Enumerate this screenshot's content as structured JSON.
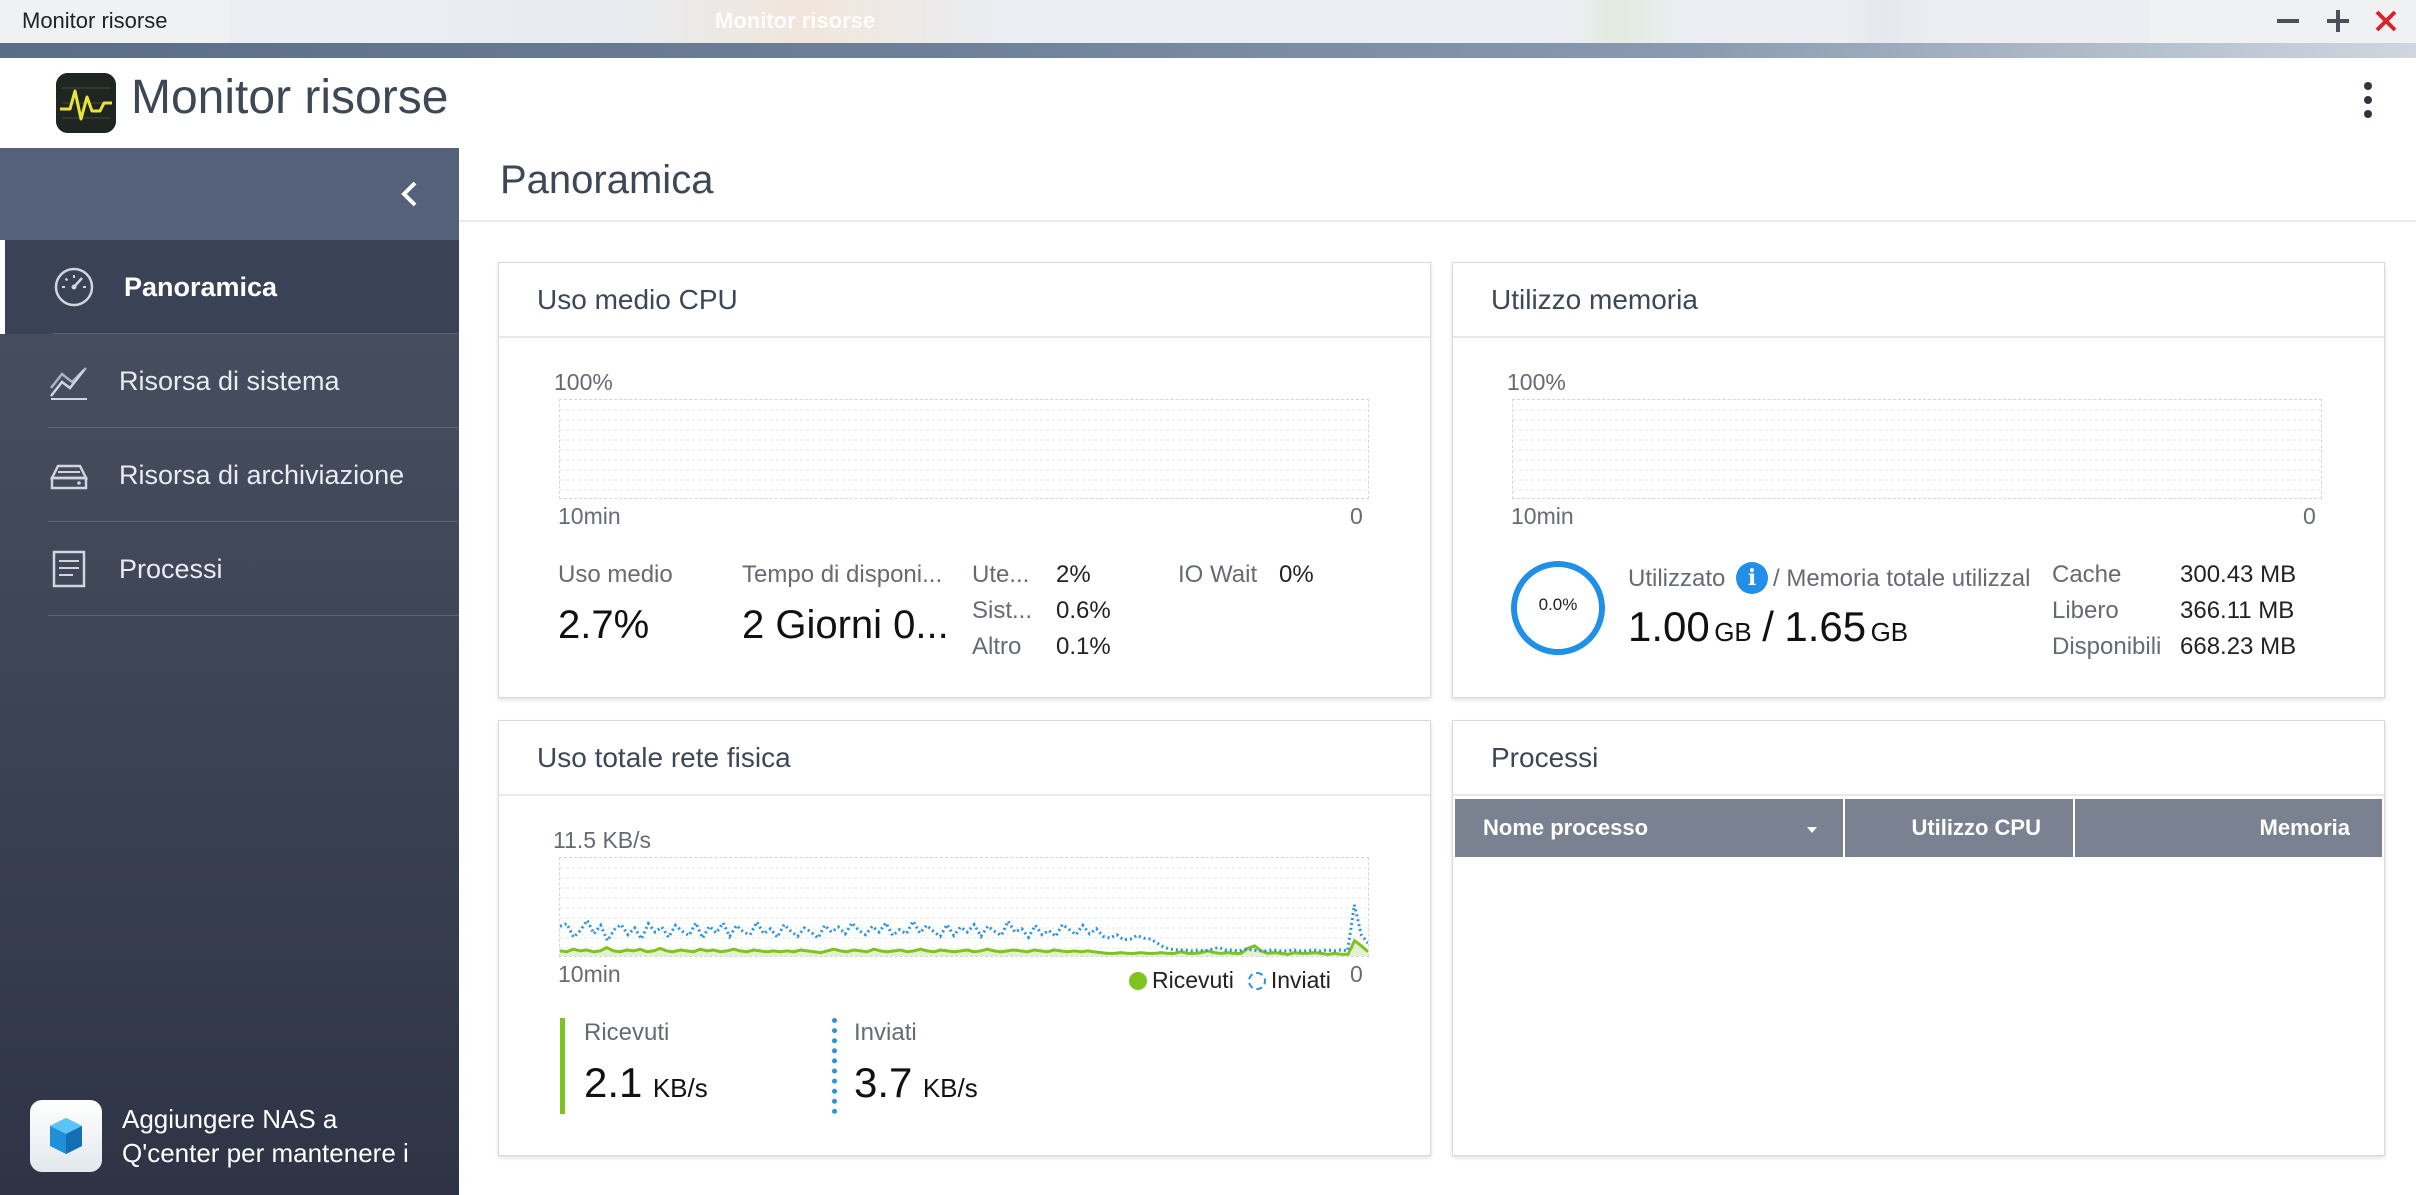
{
  "window": {
    "title": "Monitor risorse",
    "ghost_title": "Monitor risorse"
  },
  "app": {
    "name": "Monitor risorse"
  },
  "sidebar": {
    "items": [
      {
        "label": "Panoramica",
        "icon": "gauge-icon",
        "active": true
      },
      {
        "label": "Risorsa di sistema",
        "icon": "line-chart-icon",
        "active": false
      },
      {
        "label": "Risorsa di archiviazione",
        "icon": "storage-icon",
        "active": false
      },
      {
        "label": "Processi",
        "icon": "document-list-icon",
        "active": false
      }
    ],
    "qcenter_text_line1": "Aggiungere NAS a",
    "qcenter_text_line2": "Q'center per mantenere i"
  },
  "main": {
    "title": "Panoramica"
  },
  "cpu": {
    "title": "Uso medio CPU",
    "y_max_label": "100%",
    "x_start_label": "10min",
    "x_end_label": "0",
    "avg_label": "Uso medio",
    "avg_value": "2.7%",
    "uptime_label": "Tempo di disponi...",
    "uptime_value": "2 Giorni 0...",
    "user_label": "Ute...",
    "user_value": "2%",
    "sys_label": "Sist...",
    "sys_value": "0.6%",
    "other_label": "Altro",
    "other_value": "0.1%",
    "iowait_label": "IO Wait",
    "iowait_value": "0%"
  },
  "memory": {
    "title": "Utilizzo memoria",
    "y_max_label": "100%",
    "x_start_label": "10min",
    "x_end_label": "0",
    "gauge_value": "0.0%",
    "used_label": "Utilizzato",
    "total_label": "/ Memoria totale utilizzal",
    "used_value": "1.00",
    "used_unit": "GB",
    "separator": "/",
    "total_value": "1.65",
    "total_unit": "GB",
    "cache_label": "Cache",
    "cache_value": "300.43 MB",
    "free_label": "Libero",
    "free_value": "366.11 MB",
    "avail_label": "Disponibili",
    "avail_value": "668.23 MB"
  },
  "network": {
    "title": "Uso totale rete fisica",
    "y_max_label": "11.5 KB/s",
    "x_start_label": "10min",
    "x_end_label": "0",
    "legend_received": "Ricevuti",
    "legend_sent": "Inviati",
    "received_label": "Ricevuti",
    "received_value": "2.1",
    "received_unit": "KB/s",
    "sent_label": "Inviati",
    "sent_value": "3.7",
    "sent_unit": "KB/s",
    "colors": {
      "received": "#7ec320",
      "sent": "#2a93e0"
    }
  },
  "processes": {
    "title": "Processi",
    "columns": [
      "Nome processo",
      "Utilizzo CPU",
      "Memoria"
    ]
  },
  "chart_data": {
    "type": "line",
    "title": "Uso totale rete fisica",
    "xlabel": "",
    "ylabel": "",
    "ylim": [
      0,
      11.5
    ],
    "x_labels": [
      "10min",
      "0"
    ],
    "series": [
      {
        "name": "Ricevuti",
        "style": "solid-area",
        "color": "#7ec320",
        "values": [
          0.6,
          0.5,
          0.8,
          0.6,
          0.7,
          0.5,
          0.6,
          1.0,
          0.6,
          0.5,
          0.7,
          0.6,
          0.8,
          0.5,
          0.6,
          0.9,
          0.6,
          0.5,
          0.7,
          0.6,
          0.5,
          0.8,
          0.6,
          0.7,
          0.5,
          0.6,
          0.8,
          0.6,
          0.5,
          0.7,
          0.6,
          0.5,
          0.6,
          0.5,
          0.6,
          0.5,
          0.7,
          0.6,
          0.5,
          0.4,
          0.6,
          0.8,
          0.6,
          0.5,
          0.7,
          0.6,
          0.5,
          0.8,
          0.6,
          0.5,
          0.6,
          0.7,
          0.5,
          0.6,
          0.8,
          0.6,
          0.5,
          0.7,
          0.6,
          0.5,
          0.6,
          0.7,
          0.5,
          0.6,
          0.8,
          0.6,
          0.5,
          0.6,
          0.7,
          0.6,
          0.5,
          0.7,
          0.6,
          0.5,
          0.7,
          0.6,
          0.5,
          0.6,
          0.5,
          0.6,
          0.5,
          0.4,
          0.3,
          0.3,
          0.4,
          0.3,
          0.3,
          0.4,
          0.3,
          0.3,
          0.4,
          0.3,
          0.3,
          0.5,
          0.3,
          0.3,
          0.4,
          0.6,
          0.4,
          0.3,
          0.4,
          0.3,
          0.3,
          0.9,
          1.2,
          0.6,
          0.3,
          0.4,
          0.3,
          0.2,
          0.4,
          0.3,
          0.3,
          0.4,
          0.3,
          0.2,
          0.3,
          0.2,
          0.2,
          1.8,
          1.2,
          0.5
        ]
      },
      {
        "name": "Inviati",
        "style": "dotted",
        "color": "#2a93e0",
        "values": [
          3.5,
          3.8,
          2.2,
          3.0,
          4.2,
          2.6,
          3.6,
          1.8,
          3.1,
          3.7,
          2.5,
          3.3,
          2.0,
          3.8,
          2.8,
          3.4,
          2.2,
          3.6,
          2.9,
          2.4,
          3.9,
          2.1,
          3.5,
          2.7,
          3.9,
          2.3,
          3.6,
          2.8,
          2.5,
          4.0,
          2.6,
          3.2,
          2.2,
          3.7,
          2.9,
          2.3,
          3.3,
          2.8,
          2.1,
          3.6,
          2.8,
          3.4,
          2.6,
          3.9,
          3.0,
          2.5,
          3.5,
          2.8,
          3.9,
          2.4,
          3.1,
          2.6,
          4.1,
          2.7,
          3.6,
          2.9,
          2.3,
          3.7,
          2.4,
          3.4,
          2.8,
          3.7,
          2.3,
          3.5,
          2.9,
          2.4,
          4.1,
          2.8,
          3.2,
          2.2,
          3.6,
          2.5,
          3.0,
          2.3,
          3.7,
          3.1,
          2.5,
          3.6,
          2.6,
          3.2,
          2.3,
          2.1,
          2.5,
          1.9,
          2.0,
          2.4,
          2.1,
          2.0,
          1.5,
          1.0,
          0.8,
          0.7,
          0.7,
          0.6,
          0.7,
          0.6,
          0.8,
          1.0,
          0.7,
          0.7,
          0.6,
          0.8,
          0.7,
          0.6,
          0.6,
          0.7,
          0.6,
          0.6,
          0.7,
          0.6,
          0.6,
          0.7,
          0.6,
          0.7,
          0.6,
          0.7,
          0.6,
          6.0,
          2.5,
          1.5
        ]
      }
    ]
  }
}
